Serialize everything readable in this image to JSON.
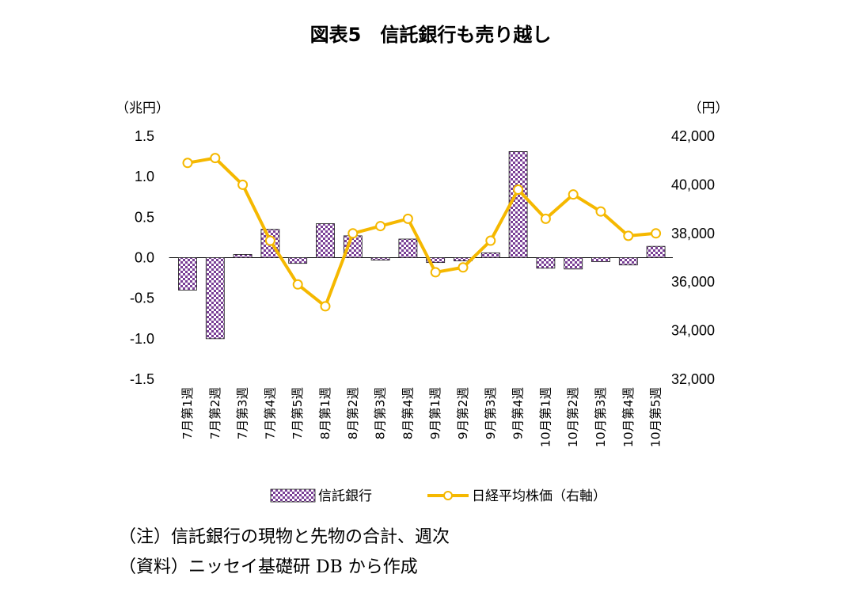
{
  "chart_data": {
    "type": "bar",
    "title": "図表5　信託銀行も売り越し",
    "left_axis": {
      "unit": "（兆円）",
      "ylim": [
        -1.5,
        1.5
      ],
      "ticks": [
        1.5,
        1.0,
        0.5,
        0.0,
        -0.5,
        -1.0,
        -1.5
      ],
      "tick_labels": [
        "1.5",
        "1.0",
        "0.5",
        "0.0",
        "-0.5",
        "-1.0",
        "-1.5"
      ]
    },
    "right_axis": {
      "unit": "（円）",
      "ylim": [
        32000,
        42000
      ],
      "ticks": [
        42000,
        40000,
        38000,
        36000,
        34000,
        32000
      ],
      "tick_labels": [
        "42,000",
        "40,000",
        "38,000",
        "36,000",
        "34,000",
        "32,000"
      ]
    },
    "categories": [
      "7月第1週",
      "7月第2週",
      "7月第3週",
      "7月第4週",
      "7月第5週",
      "8月第1週",
      "8月第2週",
      "8月第3週",
      "8月第4週",
      "9月第1週",
      "9月第2週",
      "9月第3週",
      "9月第4週",
      "10月第1週",
      "10月第2週",
      "10月第3週",
      "10月第4週",
      "10月第5週"
    ],
    "series": [
      {
        "name": "信託銀行",
        "type": "bar",
        "axis": "left",
        "values": [
          -0.4,
          -1.0,
          0.04,
          0.35,
          -0.07,
          0.42,
          0.27,
          -0.03,
          0.23,
          -0.06,
          -0.04,
          0.06,
          1.31,
          -0.13,
          -0.14,
          -0.05,
          -0.09,
          0.14
        ]
      },
      {
        "name": "日経平均株価（右軸）",
        "type": "line",
        "axis": "right",
        "values": [
          40900,
          41100,
          40000,
          37700,
          35900,
          35000,
          38000,
          38300,
          38600,
          36400,
          36600,
          37700,
          39800,
          38600,
          39600,
          38900,
          37900,
          38000
        ]
      }
    ],
    "legend_position": "bottom",
    "grid": false
  },
  "colors": {
    "bar_fill": "#7a3f96",
    "bar_fill_light": "#ffffff",
    "bar_stroke": "#1a1a1a",
    "line": "#f5b800",
    "marker_fill": "#ffffff",
    "axis": "#000000"
  },
  "notes": [
    "（注）信託銀行の現物と先物の合計、週次",
    "（資料）ニッセイ基礎研 DB から作成"
  ]
}
